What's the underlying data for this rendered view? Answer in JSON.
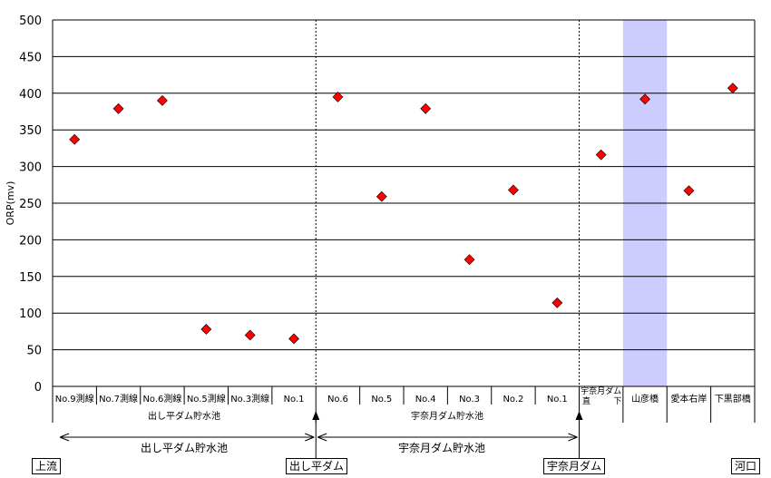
{
  "chart_data": {
    "type": "scatter",
    "ylabel": "ORP(mv)",
    "ylim": [
      0,
      500
    ],
    "yticks": [
      0,
      50,
      100,
      150,
      200,
      250,
      300,
      350,
      400,
      450,
      500
    ],
    "grid": "horizontal",
    "categories": [
      "No.9測線",
      "No.7測線",
      "No.6測線",
      "No.5測線",
      "No.3測線",
      "No.1",
      "No.6",
      "No.5",
      "No.4",
      "No.3",
      "No.2",
      "No.1",
      "宇奈月ダム直下",
      "山彦橋",
      "愛本右岸",
      "下黒部橋"
    ],
    "category_labels": [
      "No.9測線",
      "No.7測線",
      "No.6測線",
      "No.5測線",
      "No.3測線",
      "No.1",
      "No.6",
      "No.5",
      "No.4",
      "No.3",
      "No.2",
      "No.1",
      [
        "宇奈月ダム",
        "直",
        "下"
      ],
      "山彦橋",
      "愛本右岸",
      "下黒部橋"
    ],
    "values": [
      337,
      379,
      390,
      78,
      70,
      65,
      395,
      259,
      379,
      173,
      268,
      114,
      316,
      392,
      267,
      407
    ],
    "marker_color": "#FF0000",
    "highlight_category": "山彦橋",
    "highlight_color": "#CCCCFF",
    "group_labels": [
      "出し平ダム貯水池",
      "宇奈月ダム貯水池"
    ],
    "arrow_labels": [
      "出し平ダム貯水池",
      "宇奈月ダム貯水池"
    ],
    "dam_labels": [
      "出し平ダム",
      "宇奈月ダム"
    ],
    "upstream_label": "上流",
    "downstream_label": "河口"
  }
}
